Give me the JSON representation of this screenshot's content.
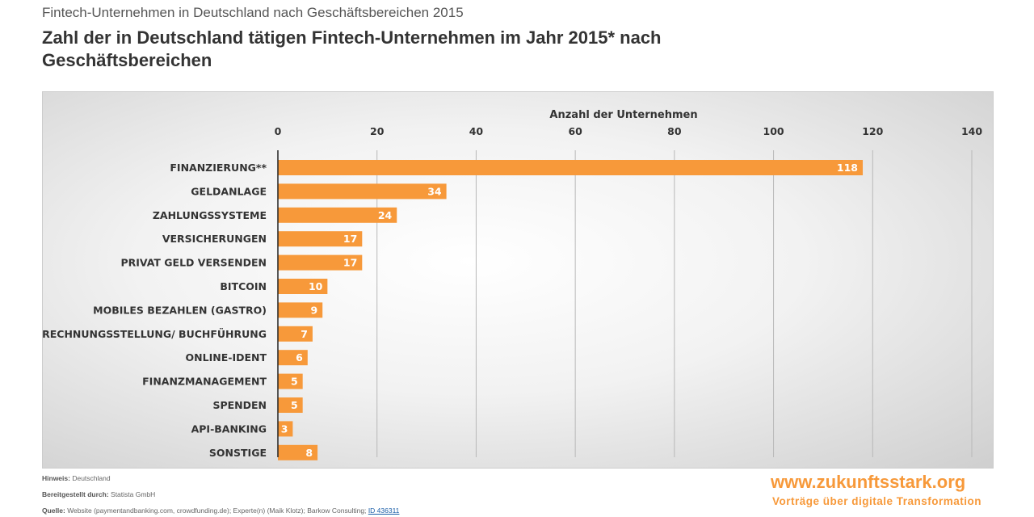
{
  "header": {
    "supertitle": "Fintech-Unternehmen in Deutschland nach Geschäftsbereichen 2015",
    "title": "Zahl der in Deutschland tätigen Fintech-Unternehmen im Jahr 2015* nach Geschäftsbereichen"
  },
  "chart_data": {
    "type": "bar",
    "orientation": "horizontal",
    "xlabel": "Anzahl der Unternehmen",
    "xlim": [
      0,
      140
    ],
    "xticks": [
      0,
      20,
      40,
      60,
      80,
      100,
      120,
      140
    ],
    "axis_position": "top",
    "grid": true,
    "bar_color": "#f7993a",
    "categories": [
      "FINANZIERUNG**",
      "GELDANLAGE",
      "ZAHLUNGSSYSTEME",
      "VERSICHERUNGEN",
      "PRIVAT GELD VERSENDEN",
      "BITCOIN",
      "MOBILES BEZAHLEN (GASTRO)",
      "RECHNUNGSSTELLUNG/ BUCHFÜHRUNG",
      "ONLINE-IDENT",
      "FINANZMANAGEMENT",
      "SPENDEN",
      "API-BANKING",
      "SONSTIGE"
    ],
    "values": [
      118,
      34,
      24,
      17,
      17,
      10,
      9,
      7,
      6,
      5,
      5,
      3,
      8
    ]
  },
  "footer": {
    "hinweis_label": "Hinweis:",
    "hinweis": "Deutschland",
    "bereit_label": "Bereitgestellt durch:",
    "bereit": "Statista GmbH",
    "quelle_label": "Quelle:",
    "quelle": "Website (paymentandbanking.com, crowdfunding.de); Experte(n) (Maik Klotz); Barkow Consulting;",
    "id_link": "ID 436311"
  },
  "branding": {
    "url": "www.zukunftsstark.org",
    "tagline": "Vorträge über digitale Transformation"
  }
}
